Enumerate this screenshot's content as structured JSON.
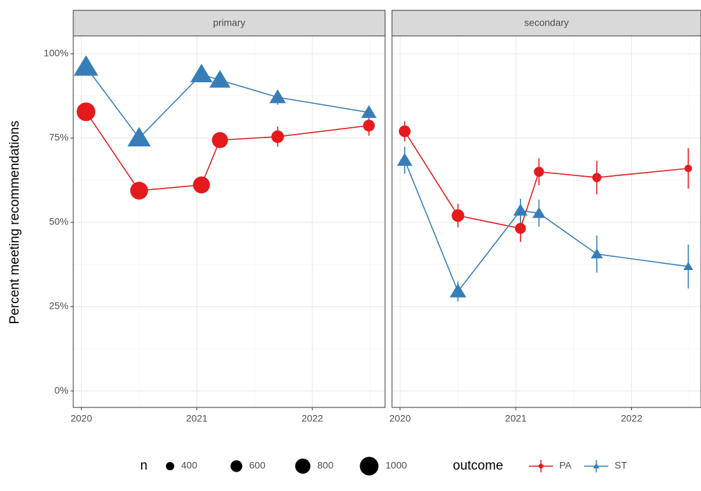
{
  "chart_data": [
    {
      "type": "line",
      "title": "primary",
      "ylabel": "Percent meeting recommendations",
      "x": [
        2020.04,
        2020.5,
        2021.04,
        2021.2,
        2021.7,
        2022.49
      ],
      "series": [
        {
          "name": "PA",
          "color": "#e41a1c",
          "marker": "circle",
          "values": [
            82.8,
            59.4,
            61.1,
            74.4,
            75.4,
            78.7
          ],
          "errors": [
            1.2,
            1.2,
            1.2,
            1.5,
            3,
            3
          ],
          "n": [
            1000,
            950,
            900,
            850,
            650,
            600
          ]
        },
        {
          "name": "ST",
          "color": "#377eb8",
          "marker": "triangle",
          "values": [
            96.1,
            75.0,
            93.9,
            92.2,
            87.1,
            82.6
          ],
          "errors": [
            1,
            1.2,
            1,
            1,
            2.2,
            2
          ],
          "n": [
            1000,
            950,
            900,
            850,
            650,
            600
          ]
        }
      ],
      "xlim": [
        2019.93,
        2022.63
      ],
      "xticks": [
        2020,
        2021,
        2022
      ],
      "xminor": [
        2020.5,
        2021.5,
        2022.5
      ],
      "ylim": [
        -4.9,
        105.3
      ],
      "yticks": [
        {
          "value": 0,
          "label": "0%"
        },
        {
          "value": 25,
          "label": "25%"
        },
        {
          "value": 50,
          "label": "50%"
        },
        {
          "value": 75,
          "label": "75%"
        },
        {
          "value": 100,
          "label": "100%"
        }
      ],
      "yminor": [
        12.5,
        37.5,
        62.5,
        87.5
      ],
      "grid": true,
      "size_legend": {
        "title": "n",
        "values": [
          400,
          600,
          800,
          1000
        ]
      },
      "color_legend_title": "outcome",
      "legend": "bottom"
    },
    {
      "type": "line",
      "title": "secondary",
      "x": [
        2020.04,
        2020.5,
        2021.04,
        2021.2,
        2021.7,
        2022.49
      ],
      "series": [
        {
          "name": "PA",
          "color": "#e41a1c",
          "marker": "circle",
          "values": [
            77.0,
            52.0,
            48.2,
            65.0,
            63.3,
            66.0
          ],
          "errors": [
            3,
            3.5,
            4,
            4,
            5,
            6
          ],
          "n": [
            600,
            650,
            550,
            500,
            450,
            350
          ]
        },
        {
          "name": "ST",
          "color": "#377eb8",
          "marker": "triangle",
          "values": [
            68.4,
            29.5,
            53.5,
            52.7,
            40.6,
            36.9
          ],
          "errors": [
            4,
            3,
            3.5,
            4,
            5.5,
            6.5
          ],
          "n": [
            600,
            650,
            550,
            500,
            450,
            350
          ]
        }
      ],
      "xlim": [
        2019.93,
        2022.6
      ],
      "xticks": [
        2020,
        2021,
        2022
      ],
      "xminor": [
        2020.5,
        2021.5,
        2022.5
      ],
      "ylim": [
        -4.9,
        105.3
      ],
      "yticks": [
        {
          "value": 0,
          "label": "0%"
        },
        {
          "value": 25,
          "label": "25%"
        },
        {
          "value": 50,
          "label": "50%"
        },
        {
          "value": 75,
          "label": "75%"
        },
        {
          "value": 100,
          "label": "100%"
        }
      ],
      "yminor": [
        12.5,
        37.5,
        62.5,
        87.5
      ],
      "grid": true
    }
  ]
}
